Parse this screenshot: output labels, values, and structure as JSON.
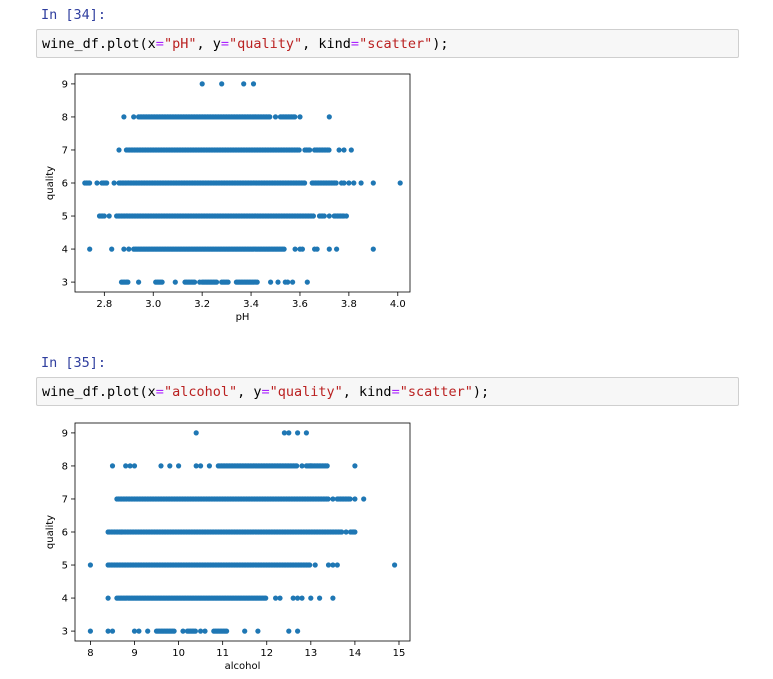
{
  "cells": [
    {
      "prompt": "In [34]:",
      "code": {
        "pre": "wine_df.plot(x",
        "eq1": "=",
        "x_str": "\"pH\"",
        "mid1": ", y",
        "eq2": "=",
        "y_str": "\"quality\"",
        "mid2": ", kind",
        "eq3": "=",
        "kind_str": "\"scatter\"",
        "post": ");"
      }
    },
    {
      "prompt": "In [35]:",
      "code": {
        "pre": "wine_df.plot(x",
        "eq1": "=",
        "x_str": "\"alcohol\"",
        "mid1": ", y",
        "eq2": "=",
        "y_str": "\"quality\"",
        "mid2": ", kind",
        "eq3": "=",
        "kind_str": "\"scatter\"",
        "post": ");"
      }
    }
  ],
  "colors": {
    "marker": "#1f77b4",
    "prompt": "#303f9f",
    "string": "#ba2121"
  },
  "chart_data": [
    {
      "type": "scatter",
      "xlabel": "pH",
      "ylabel": "quality",
      "xlim": [
        2.68,
        4.05
      ],
      "ylim": [
        2.7,
        9.3
      ],
      "xticks": [
        "2.8",
        "3.0",
        "3.2",
        "3.4",
        "3.6",
        "3.8",
        "4.0"
      ],
      "xtick_values": [
        2.8,
        3.0,
        3.2,
        3.4,
        3.6,
        3.8,
        4.0
      ],
      "yticks": [
        "3",
        "4",
        "5",
        "6",
        "7",
        "8",
        "9"
      ],
      "ytick_values": [
        3,
        4,
        5,
        6,
        7,
        8,
        9
      ],
      "rows": [
        {
          "y": 3,
          "ranges": [
            [
              2.87,
              2.9
            ],
            [
              3.01,
              3.04
            ],
            [
              3.13,
              3.17
            ],
            [
              3.2,
              3.26
            ],
            [
              3.28,
              3.31
            ],
            [
              3.34,
              3.43
            ]
          ],
          "points": [
            2.94,
            3.09,
            3.19,
            3.48,
            3.51,
            3.54,
            3.55,
            3.57,
            3.63
          ]
        },
        {
          "y": 4,
          "ranges": [
            [
              2.92,
              3.54
            ]
          ],
          "points": [
            2.74,
            2.83,
            2.88,
            2.9,
            3.58,
            3.6,
            3.61,
            3.66,
            3.67,
            3.72,
            3.75,
            3.9
          ]
        },
        {
          "y": 5,
          "ranges": [
            [
              2.78,
              2.8
            ],
            [
              2.85,
              3.66
            ],
            [
              3.68,
              3.7
            ],
            [
              3.74,
              3.78
            ]
          ],
          "points": [
            2.82,
            3.72,
            3.79
          ]
        },
        {
          "y": 6,
          "ranges": [
            [
              2.72,
              2.74
            ],
            [
              2.79,
              2.81
            ],
            [
              2.86,
              3.62
            ],
            [
              3.65,
              3.75
            ]
          ],
          "points": [
            2.77,
            2.84,
            3.77,
            3.78,
            3.8,
            3.82,
            3.85,
            3.9,
            4.01
          ]
        },
        {
          "y": 7,
          "ranges": [
            [
              2.89,
              3.6
            ],
            [
              3.62,
              3.64
            ],
            [
              3.66,
              3.72
            ]
          ],
          "points": [
            2.86,
            3.76,
            3.78,
            3.81
          ]
        },
        {
          "y": 8,
          "ranges": [
            [
              2.94,
              3.48
            ],
            [
              3.52,
              3.58
            ]
          ],
          "points": [
            2.88,
            2.92,
            3.5,
            3.6,
            3.72
          ]
        },
        {
          "y": 9,
          "ranges": [],
          "points": [
            3.2,
            3.28,
            3.37,
            3.41
          ]
        }
      ]
    },
    {
      "type": "scatter",
      "xlabel": "alcohol",
      "ylabel": "quality",
      "xlim": [
        7.65,
        15.25
      ],
      "ylim": [
        2.7,
        9.3
      ],
      "xticks": [
        "8",
        "9",
        "10",
        "11",
        "12",
        "13",
        "14",
        "15"
      ],
      "xtick_values": [
        8,
        9,
        10,
        11,
        12,
        13,
        14,
        15
      ],
      "yticks": [
        "3",
        "4",
        "5",
        "6",
        "7",
        "8",
        "9"
      ],
      "ytick_values": [
        3,
        4,
        5,
        6,
        7,
        8,
        9
      ],
      "rows": [
        {
          "y": 3,
          "ranges": [
            [
              9.5,
              9.9
            ],
            [
              10.2,
              10.4
            ],
            [
              10.8,
              11.1
            ]
          ],
          "points": [
            8.0,
            8.4,
            8.5,
            9.0,
            9.1,
            9.3,
            10.1,
            10.5,
            10.6,
            11.5,
            11.8,
            12.5,
            12.7
          ]
        },
        {
          "y": 4,
          "ranges": [
            [
              8.6,
              12.0
            ]
          ],
          "points": [
            8.4,
            12.2,
            12.3,
            12.6,
            12.7,
            12.8,
            13.0,
            13.2,
            13.5
          ]
        },
        {
          "y": 5,
          "ranges": [
            [
              8.4,
              13.0
            ]
          ],
          "points": [
            8.0,
            13.1,
            13.4,
            13.5,
            13.6,
            14.9
          ]
        },
        {
          "y": 6,
          "ranges": [
            [
              8.4,
              13.7
            ],
            [
              13.9,
              14.0
            ]
          ],
          "points": [
            8.7,
            13.8,
            14.0
          ]
        },
        {
          "y": 7,
          "ranges": [
            [
              8.6,
              13.4
            ],
            [
              13.6,
              13.9
            ]
          ],
          "points": [
            13.5,
            14.0,
            14.2
          ]
        },
        {
          "y": 8,
          "ranges": [
            [
              10.9,
              12.7
            ],
            [
              12.9,
              13.4
            ]
          ],
          "points": [
            8.5,
            8.8,
            8.9,
            9.0,
            9.6,
            9.8,
            10.0,
            10.4,
            10.5,
            10.7,
            12.8,
            13.0,
            14.0
          ]
        },
        {
          "y": 9,
          "ranges": [],
          "points": [
            10.4,
            12.4,
            12.5,
            12.7,
            12.9
          ]
        }
      ]
    }
  ]
}
